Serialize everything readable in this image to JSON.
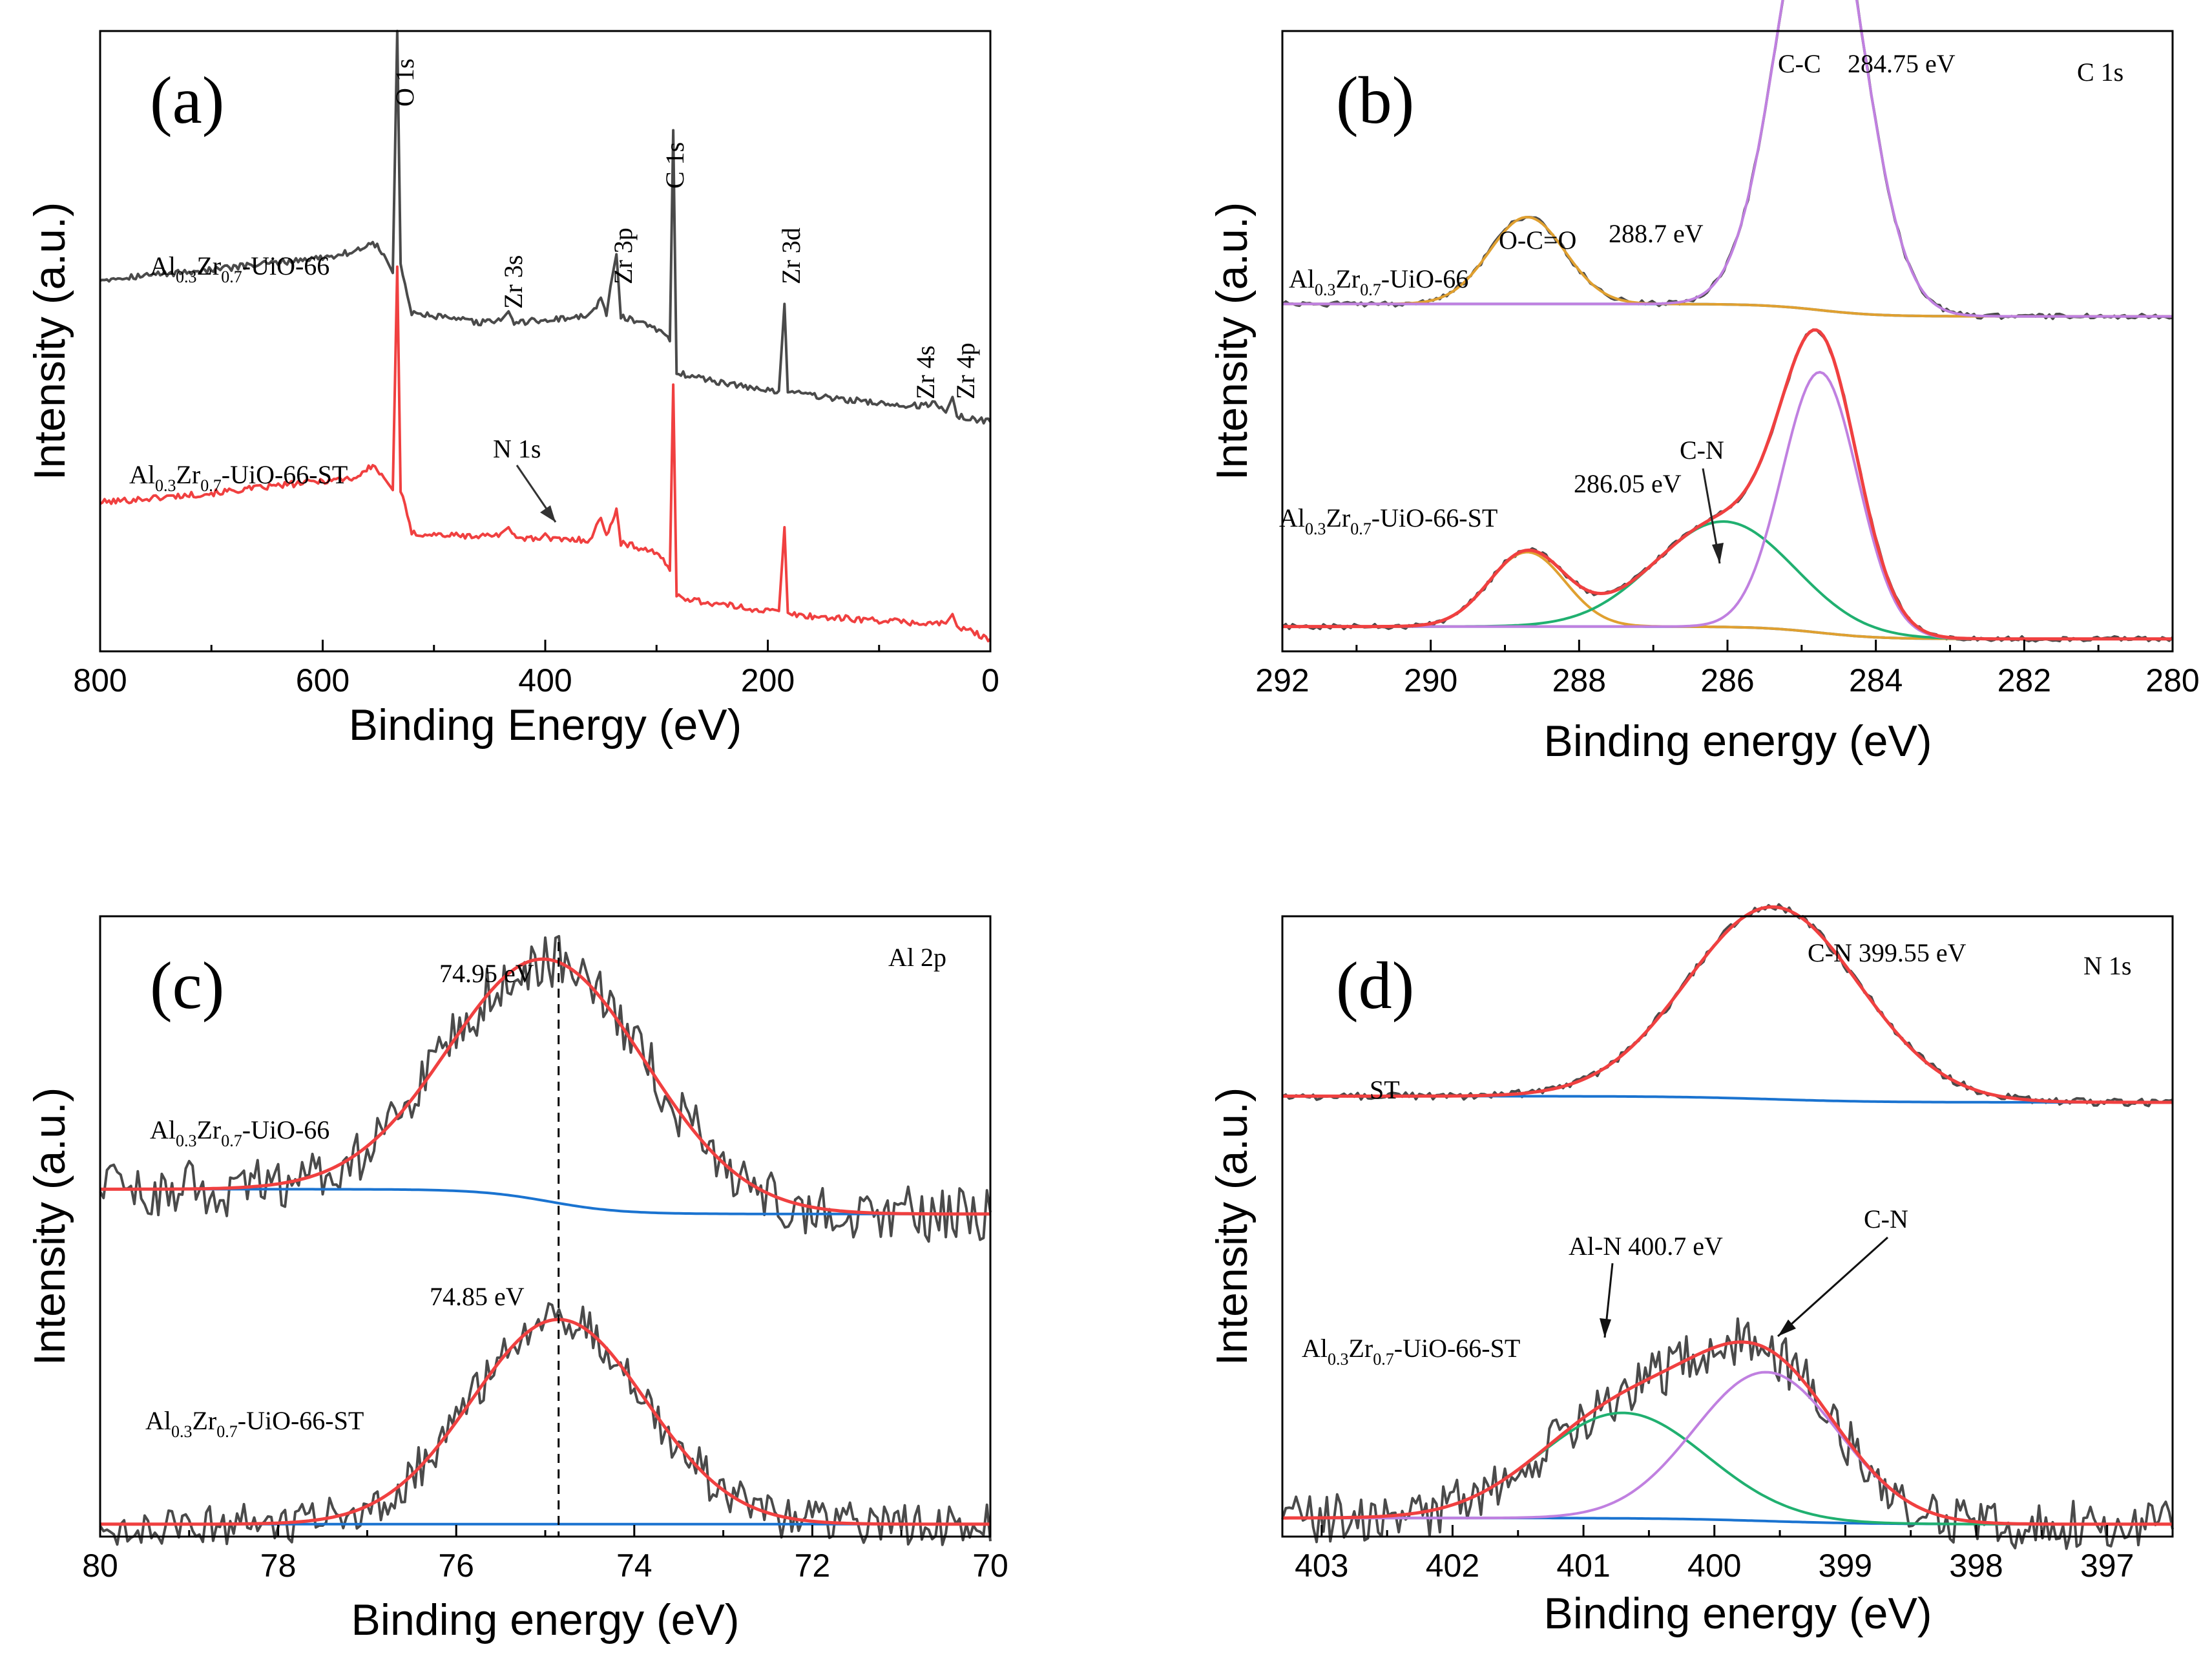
{
  "chart_data": [
    {
      "id": "a",
      "type": "line",
      "panel_label": "(a)",
      "xlabel": "Binding Energy (eV)",
      "ylabel": "Intensity (a.u.)",
      "xlim": [
        800,
        0
      ],
      "xticks": [
        800,
        600,
        400,
        200,
        0
      ],
      "xtick_labels": [
        "800",
        "600",
        "400",
        "200",
        "0"
      ],
      "series": [
        {
          "name": "Al0.3Zr0.7-UiO-66",
          "color": "#4a4a4a",
          "label_parts": [
            "Al",
            "0.3",
            "Zr",
            "0.7",
            "-UiO-66"
          ],
          "baseline": 0.6,
          "points": [
            [
              800,
              0.6
            ],
            [
              700,
              0.615
            ],
            [
              600,
              0.635
            ],
            [
              570,
              0.645
            ],
            [
              555,
              0.66
            ],
            [
              545,
              0.64
            ],
            [
              537,
              0.61
            ],
            [
              533,
              1.0
            ],
            [
              530,
              0.62
            ],
            [
              520,
              0.545
            ],
            [
              460,
              0.53
            ],
            [
              440,
              0.533
            ],
            [
              433,
              0.548
            ],
            [
              428,
              0.53
            ],
            [
              360,
              0.54
            ],
            [
              350,
              0.57
            ],
            [
              345,
              0.545
            ],
            [
              336,
              0.64
            ],
            [
              332,
              0.54
            ],
            [
              300,
              0.52
            ],
            [
              288,
              0.5
            ],
            [
              285,
              0.84
            ],
            [
              282,
              0.45
            ],
            [
              260,
              0.44
            ],
            [
              200,
              0.42
            ],
            [
              190,
              0.42
            ],
            [
              185,
              0.56
            ],
            [
              182,
              0.42
            ],
            [
              150,
              0.41
            ],
            [
              100,
              0.4
            ],
            [
              60,
              0.395
            ],
            [
              50,
              0.4
            ],
            [
              40,
              0.385
            ],
            [
              34,
              0.41
            ],
            [
              30,
              0.38
            ],
            [
              0,
              0.37
            ]
          ]
        },
        {
          "name": "Al0.3Zr0.7-UiO-66-ST",
          "color": "#f04040",
          "label_parts": [
            "Al",
            "0.3",
            "Zr",
            "0.7",
            "-UiO-66-ST"
          ],
          "baseline": 0.24,
          "points": [
            [
              800,
              0.24
            ],
            [
              700,
              0.255
            ],
            [
              600,
              0.275
            ],
            [
              570,
              0.28
            ],
            [
              555,
              0.3
            ],
            [
              545,
              0.28
            ],
            [
              537,
              0.26
            ],
            [
              533,
              0.62
            ],
            [
              530,
              0.26
            ],
            [
              520,
              0.19
            ],
            [
              460,
              0.185
            ],
            [
              440,
              0.19
            ],
            [
              433,
              0.2
            ],
            [
              428,
              0.185
            ],
            [
              405,
              0.18
            ],
            [
              400,
              0.19
            ],
            [
              395,
              0.18
            ],
            [
              360,
              0.18
            ],
            [
              350,
              0.215
            ],
            [
              345,
              0.185
            ],
            [
              336,
              0.23
            ],
            [
              332,
              0.175
            ],
            [
              300,
              0.16
            ],
            [
              288,
              0.13
            ],
            [
              285,
              0.43
            ],
            [
              282,
              0.09
            ],
            [
              260,
              0.08
            ],
            [
              200,
              0.065
            ],
            [
              190,
              0.065
            ],
            [
              185,
              0.2
            ],
            [
              182,
              0.06
            ],
            [
              150,
              0.055
            ],
            [
              100,
              0.05
            ],
            [
              60,
              0.045
            ],
            [
              40,
              0.045
            ],
            [
              34,
              0.06
            ],
            [
              30,
              0.04
            ],
            [
              0,
              0.02
            ]
          ]
        }
      ],
      "annotations": [
        {
          "text": "O 1s",
          "x": 533
        },
        {
          "text": "Zr 3s",
          "x": 433
        },
        {
          "text": "Zr 3p",
          "x": 336
        },
        {
          "text": "C 1s",
          "x": 285
        },
        {
          "text": "Zr 3d",
          "x": 185
        },
        {
          "text": "Zr 4s",
          "x": 52
        },
        {
          "text": "Zr 4p",
          "x": 30
        },
        {
          "text": "N 1s",
          "x": 400
        }
      ]
    },
    {
      "id": "b",
      "type": "line",
      "panel_label": "(b)",
      "xlabel": "Binding energy (eV)",
      "ylabel": "Intensity (a.u.)",
      "xlim": [
        292,
        280
      ],
      "xticks": [
        292,
        290,
        288,
        286,
        284,
        282,
        280
      ],
      "xtick_labels": [
        "292",
        "290",
        "288",
        "286",
        "284",
        "282",
        "280"
      ],
      "title_right": "C 1s",
      "annotations": [
        "C-C",
        "284.75 eV",
        "O-C=O",
        "288.7 eV",
        "C-N",
        "286.05 eV"
      ],
      "samples": [
        {
          "name": "Al0.3Zr0.7-UiO-66",
          "label_parts": [
            "Al",
            "0.3",
            "Zr",
            "0.7",
            "-UiO-66"
          ],
          "baseline_high": 0.56,
          "baseline_low": 0.54,
          "peaks": [
            {
              "name": "O-C=O",
              "center": 288.7,
              "height": 0.14,
              "fwhm": 1.2,
              "color": "#e0a030"
            },
            {
              "name": "C-C",
              "center": 284.75,
              "height": 0.73,
              "fwhm": 1.35,
              "color": "#c080e0"
            }
          ]
        },
        {
          "name": "Al0.3Zr0.7-UiO-66-ST",
          "label_parts": [
            "Al",
            "0.3",
            "Zr",
            "0.7",
            "-UiO-66-ST"
          ],
          "baseline_high": 0.04,
          "baseline_low": 0.02,
          "peaks": [
            {
              "name": "O-C=O",
              "center": 288.7,
              "height": 0.12,
              "fwhm": 1.2,
              "color": "#e0a030"
            },
            {
              "name": "C-N",
              "center": 286.05,
              "height": 0.17,
              "fwhm": 2.2,
              "color": "#20b070"
            },
            {
              "name": "C-C",
              "center": 284.75,
              "height": 0.42,
              "fwhm": 1.2,
              "color": "#c080e0"
            }
          ]
        }
      ]
    },
    {
      "id": "c",
      "type": "line",
      "panel_label": "(c)",
      "xlabel": "Binding energy (eV)",
      "ylabel": "Intensity (a.u.)",
      "xlim": [
        80,
        70
      ],
      "xticks": [
        80,
        78,
        76,
        74,
        72,
        70
      ],
      "xtick_labels": [
        "80",
        "78",
        "76",
        "74",
        "72",
        "70"
      ],
      "title_right": "Al 2p",
      "dashed_line_x": 74.85,
      "annotations": [
        "74.95 eV",
        "74.85 eV"
      ],
      "samples": [
        {
          "name": "Al0.3Zr0.7-UiO-66",
          "label_parts": [
            "Al",
            "0.3",
            "Zr",
            "0.7",
            "-UiO-66"
          ],
          "baseline_high": 0.56,
          "baseline_low": 0.52,
          "noise": 0.045,
          "peaks": [
            {
              "name": "Al 2p",
              "center": 74.95,
              "height": 0.39,
              "fwhm": 2.6,
              "color": "#f04040"
            }
          ]
        },
        {
          "name": "Al0.3Zr0.7-UiO-66-ST",
          "label_parts": [
            "Al",
            "0.3",
            "Zr",
            "0.7",
            "-UiO-66-ST"
          ],
          "baseline_high": 0.02,
          "baseline_low": 0.02,
          "noise": 0.035,
          "peaks": [
            {
              "name": "Al 2p",
              "center": 74.85,
              "height": 0.33,
              "fwhm": 2.3,
              "color": "#f04040"
            }
          ]
        }
      ]
    },
    {
      "id": "d",
      "type": "line",
      "panel_label": "(d)",
      "xlabel": "Binding energy (eV)",
      "ylabel": "Intensity (a.u.)",
      "xlim": [
        403.3,
        396.5
      ],
      "xticks": [
        403,
        402,
        401,
        400,
        399,
        398,
        397
      ],
      "xtick_labels": [
        "403",
        "402",
        "401",
        "400",
        "399",
        "398",
        "397"
      ],
      "title_right": "N 1s",
      "annotations": [
        "C-N 399.55 eV",
        "Al-N 400.7 eV",
        "C-N"
      ],
      "samples": [
        {
          "name": "ST",
          "label_parts": [
            "ST"
          ],
          "baseline_high": 0.71,
          "baseline_low": 0.7,
          "noise": 0.006,
          "peaks": [
            {
              "name": "C-N",
              "center": 399.55,
              "height": 0.31,
              "fwhm": 1.55,
              "color": "#f04040"
            }
          ]
        },
        {
          "name": "Al0.3Zr0.7-UiO-66-ST",
          "label_parts": [
            "Al",
            "0.3",
            "Zr",
            "0.7",
            "-UiO-66-ST"
          ],
          "baseline_high": 0.03,
          "baseline_low": 0.02,
          "noise": 0.04,
          "peaks": [
            {
              "name": "Al-N",
              "center": 400.7,
              "height": 0.17,
              "fwhm": 1.5,
              "color": "#20b070"
            },
            {
              "name": "C-N",
              "center": 399.6,
              "height": 0.24,
              "fwhm": 1.3,
              "color": "#c080e0"
            }
          ]
        }
      ]
    }
  ]
}
